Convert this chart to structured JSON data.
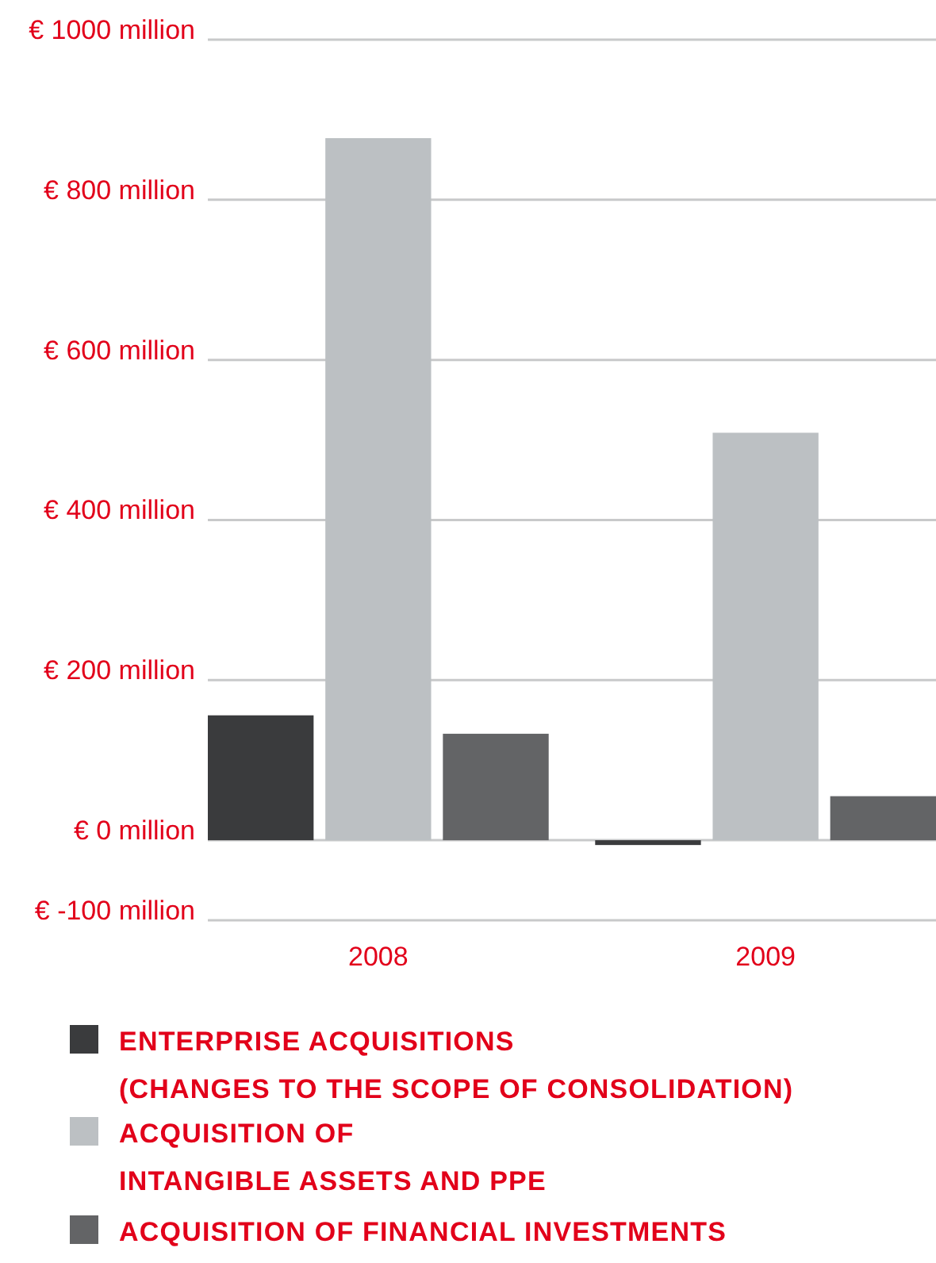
{
  "chart_data": {
    "type": "bar",
    "categories": [
      "2008",
      "2009"
    ],
    "series": [
      {
        "name": "ENTERPRISE ACQUISITIONS\n(CHANGES TO THE SCOPE OF CONSOLIDATION)",
        "color": "#3a3b3d",
        "values": [
          156,
          -6
        ]
      },
      {
        "name": "ACQUISITION OF\nINTANGIBLE ASSETS AND PPE",
        "color": "#bcc0c3",
        "values": [
          877,
          509
        ]
      },
      {
        "name": "ACQUISITION OF FINANCIAL INVESTMENTS",
        "color": "#636466",
        "values": [
          133,
          55
        ]
      }
    ],
    "ylim": [
      -100,
      1000
    ],
    "yticks": [
      {
        "value": -100,
        "label": "€ -100 million"
      },
      {
        "value": 0,
        "label": "€ 0 million"
      },
      {
        "value": 200,
        "label": "€ 200 million"
      },
      {
        "value": 400,
        "label": "€ 400 million"
      },
      {
        "value": 600,
        "label": "€ 600 million"
      },
      {
        "value": 800,
        "label": "€ 800 million"
      },
      {
        "value": 1000,
        "label": "€ 1000 million"
      }
    ],
    "grid": "y",
    "legend": "bottom"
  }
}
